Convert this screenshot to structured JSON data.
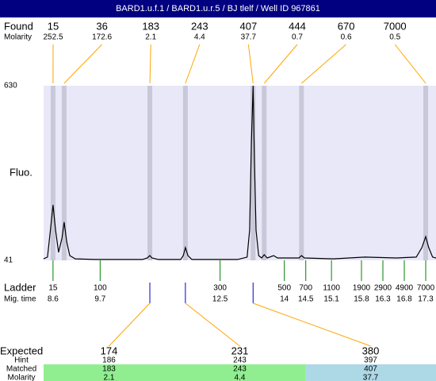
{
  "header": {
    "title": "BARD1.u.f.1 / BARD1.u.r.5 / BJ tlelf / Well ID 967861"
  },
  "chart_data": {
    "type": "line",
    "y_label": "Fluo.",
    "color": "#000000",
    "xlim": [
      8.38,
      17.54
    ],
    "ylim": [
      41,
      630
    ],
    "yticks": [
      41,
      630
    ],
    "x": [
      8.38,
      8.47,
      8.54,
      8.6,
      8.66,
      8.73,
      8.81,
      8.86,
      8.92,
      8.99,
      9.12,
      9.58,
      10.69,
      10.8,
      10.86,
      10.91,
      11.06,
      11.58,
      11.64,
      11.69,
      11.75,
      11.84,
      12.91,
      13.13,
      13.19,
      13.23,
      13.27,
      13.3,
      13.34,
      13.4,
      13.47,
      13.53,
      13.6,
      13.75,
      13.84,
      14.34,
      14.4,
      14.47,
      15.14,
      15.88,
      16.62,
      17.08,
      17.21,
      17.3,
      17.37,
      17.46,
      17.54
    ],
    "values": [
      46,
      52,
      143,
      228,
      143,
      68,
      116,
      170,
      103,
      57,
      46,
      44,
      44,
      49,
      57,
      49,
      44,
      44,
      57,
      84,
      57,
      44,
      44,
      52,
      143,
      437,
      630,
      383,
      143,
      57,
      49,
      60,
      49,
      57,
      49,
      49,
      57,
      49,
      46,
      52,
      49,
      52,
      84,
      121,
      84,
      52,
      49
    ],
    "found": {
      "label": "Found",
      "molarity_label": "Molarity",
      "peaks": [
        {
          "size": 15,
          "molarity": 252.5,
          "x": 8.6
        },
        {
          "size": 36,
          "molarity": 172.6,
          "x": 8.86
        },
        {
          "size": 183,
          "molarity": 2.1,
          "x": 10.86
        },
        {
          "size": 243,
          "molarity": 4.4,
          "x": 11.69
        },
        {
          "size": 407,
          "molarity": 37.7,
          "x": 13.27
        },
        {
          "size": 444,
          "molarity": 0.7,
          "x": 13.53
        },
        {
          "size": 670,
          "molarity": 0.6,
          "x": 14.4
        },
        {
          "size": 7000,
          "molarity": 0.5,
          "x": 17.3
        }
      ]
    },
    "ladder": {
      "label": "Ladder",
      "time_label": "Mig. time",
      "sizes": [
        15,
        100,
        300,
        500,
        700,
        1100,
        1900,
        2900,
        4900,
        7000
      ],
      "times": [
        8.6,
        9.7,
        12.5,
        14,
        14.5,
        15.1,
        15.8,
        16.3,
        16.8,
        17.3
      ]
    },
    "expected": {
      "label": "Expected",
      "hint_label": "Hint",
      "matched_label": "Matched",
      "molarity_label": "Molarity",
      "columns": [
        {
          "expected": 174,
          "hint": 186,
          "matched": 183,
          "molarity": 2.1
        },
        {
          "expected": 231,
          "hint": 243,
          "matched": 243,
          "molarity": 4.4
        },
        {
          "expected": 380,
          "hint": 397,
          "matched": 407,
          "molarity": 37.7
        }
      ]
    }
  }
}
